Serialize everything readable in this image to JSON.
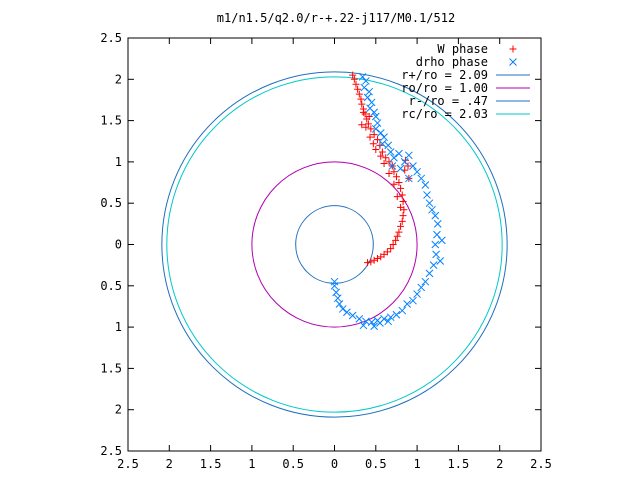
{
  "chart_data": {
    "type": "scatter",
    "title": "m1/n1.5/q2.0/r-+.22-j117/M0.1/512",
    "xlabel": "",
    "ylabel": "",
    "xlim": [
      -2.5,
      2.5
    ],
    "ylim": [
      -2.5,
      2.5
    ],
    "grid": false,
    "legend_position": "top-right",
    "x_tick_labels": [
      "2.5",
      "2",
      "1.5",
      "1",
      "0.5",
      "0",
      "0.5",
      "1",
      "1.5",
      "2",
      "2.5"
    ],
    "y_tick_labels": [
      "2.5",
      "2",
      "1.5",
      "1",
      "0.5",
      "0",
      "0.5",
      "1",
      "1.5",
      "2",
      "2.5"
    ],
    "series": [
      {
        "name": "W phase",
        "marker": "+",
        "color": "#ff0000",
        "points": [
          [
            0.22,
            2.05
          ],
          [
            0.24,
            2.0
          ],
          [
            0.26,
            1.94
          ],
          [
            0.28,
            1.88
          ],
          [
            0.3,
            1.82
          ],
          [
            0.32,
            1.76
          ],
          [
            0.33,
            1.7
          ],
          [
            0.35,
            1.64
          ],
          [
            0.37,
            1.58
          ],
          [
            0.39,
            1.52
          ],
          [
            0.41,
            1.46
          ],
          [
            0.33,
            1.45
          ],
          [
            0.38,
            1.42
          ],
          [
            0.44,
            1.4
          ],
          [
            0.48,
            1.33
          ],
          [
            0.43,
            1.3
          ],
          [
            0.52,
            1.27
          ],
          [
            0.47,
            1.22
          ],
          [
            0.55,
            1.2
          ],
          [
            0.5,
            1.15
          ],
          [
            0.58,
            1.12
          ],
          [
            0.56,
            1.07
          ],
          [
            0.62,
            1.05
          ],
          [
            0.66,
            1.0
          ],
          [
            0.6,
            0.98
          ],
          [
            0.7,
            0.95
          ],
          [
            0.72,
            0.88
          ],
          [
            0.66,
            0.86
          ],
          [
            0.75,
            0.82
          ],
          [
            0.78,
            0.75
          ],
          [
            0.72,
            0.73
          ],
          [
            0.8,
            0.68
          ],
          [
            0.82,
            0.6
          ],
          [
            0.76,
            0.58
          ],
          [
            0.83,
            0.52
          ],
          [
            0.8,
            0.45
          ],
          [
            0.84,
            0.42
          ],
          [
            0.83,
            0.35
          ],
          [
            0.82,
            0.28
          ],
          [
            0.8,
            0.22
          ],
          [
            0.78,
            0.15
          ],
          [
            0.76,
            0.1
          ],
          [
            0.74,
            0.05
          ],
          [
            0.71,
            0.0
          ],
          [
            0.68,
            -0.05
          ],
          [
            0.64,
            -0.09
          ],
          [
            0.6,
            -0.12
          ],
          [
            0.56,
            -0.15
          ],
          [
            0.52,
            -0.17
          ],
          [
            0.48,
            -0.19
          ],
          [
            0.44,
            -0.21
          ],
          [
            0.4,
            -0.22
          ],
          [
            0.89,
            0.95
          ],
          [
            0.86,
            1.02
          ],
          [
            0.9,
            0.8
          ],
          [
            0.85,
            0.9
          ],
          [
            0.35,
            1.6
          ],
          [
            0.42,
            1.55
          ]
        ]
      },
      {
        "name": "drho phase",
        "marker": "x",
        "color": "#0080ff",
        "points": [
          [
            0.34,
            2.03
          ],
          [
            0.38,
            1.98
          ],
          [
            0.36,
            1.9
          ],
          [
            0.42,
            1.85
          ],
          [
            0.4,
            1.78
          ],
          [
            0.45,
            1.72
          ],
          [
            0.43,
            1.65
          ],
          [
            0.48,
            1.6
          ],
          [
            0.5,
            1.55
          ],
          [
            0.52,
            1.47
          ],
          [
            0.5,
            1.4
          ],
          [
            0.56,
            1.35
          ],
          [
            0.6,
            1.3
          ],
          [
            0.58,
            1.22
          ],
          [
            0.65,
            1.2
          ],
          [
            0.68,
            1.12
          ],
          [
            0.72,
            1.05
          ],
          [
            0.78,
            1.1
          ],
          [
            0.85,
            1.0
          ],
          [
            0.9,
            1.08
          ],
          [
            0.95,
            0.95
          ],
          [
            1.0,
            0.88
          ],
          [
            1.05,
            0.8
          ],
          [
            1.1,
            0.72
          ],
          [
            1.12,
            0.6
          ],
          [
            1.15,
            0.5
          ],
          [
            1.18,
            0.42
          ],
          [
            1.22,
            0.35
          ],
          [
            1.25,
            0.25
          ],
          [
            1.24,
            0.12
          ],
          [
            1.22,
            0.0
          ],
          [
            1.23,
            -0.12
          ],
          [
            1.2,
            -0.25
          ],
          [
            1.15,
            -0.35
          ],
          [
            1.1,
            -0.45
          ],
          [
            1.05,
            -0.52
          ],
          [
            1.0,
            -0.6
          ],
          [
            0.95,
            -0.68
          ],
          [
            0.88,
            -0.72
          ],
          [
            0.82,
            -0.8
          ],
          [
            0.75,
            -0.85
          ],
          [
            0.68,
            -0.88
          ],
          [
            0.6,
            -0.9
          ],
          [
            0.52,
            -0.92
          ],
          [
            0.45,
            -0.94
          ],
          [
            0.38,
            -0.93
          ],
          [
            0.3,
            -0.9
          ],
          [
            0.22,
            -0.86
          ],
          [
            0.15,
            -0.82
          ],
          [
            0.1,
            -0.78
          ],
          [
            0.06,
            -0.72
          ],
          [
            0.04,
            -0.65
          ],
          [
            0.02,
            -0.58
          ],
          [
            0.0,
            -0.5
          ],
          [
            0.0,
            -0.45
          ],
          [
            0.7,
            0.95
          ],
          [
            0.8,
            0.92
          ],
          [
            0.9,
            0.8
          ],
          [
            1.3,
            0.05
          ],
          [
            1.28,
            -0.2
          ],
          [
            0.48,
            -0.99
          ],
          [
            0.35,
            -0.98
          ],
          [
            0.55,
            -0.95
          ],
          [
            0.65,
            -0.93
          ]
        ]
      }
    ],
    "reference_circles": [
      {
        "label": "r+/ro = 2.09",
        "radius": 2.09,
        "color": "#1f6fbf"
      },
      {
        "label": "ro/ro = 1.00",
        "radius": 1.0,
        "color": "#b000b0"
      },
      {
        "label": "r-/ro = .47",
        "radius": 0.47,
        "color": "#1f6fbf"
      },
      {
        "label": "rc/ro = 2.03",
        "radius": 2.03,
        "color": "#00c8c8"
      }
    ]
  }
}
